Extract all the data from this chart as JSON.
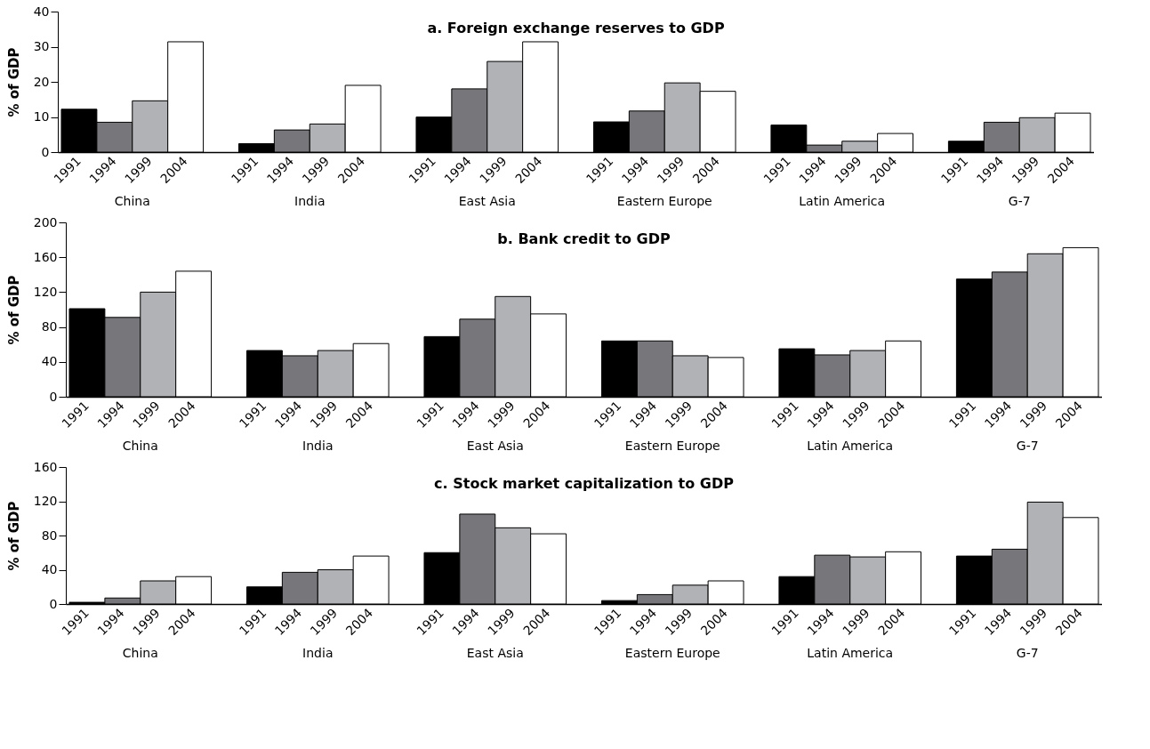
{
  "chart_data": [
    {
      "type": "bar",
      "title": "a. Foreign exchange reserves to GDP",
      "ylabel": "% of GDP",
      "categories": [
        "China",
        "India",
        "East Asia",
        "Eastern Europe",
        "Latin America",
        "G-7"
      ],
      "ylim": [
        0,
        40
      ],
      "yticks": [
        0,
        10,
        20,
        30,
        40
      ],
      "series": [
        {
          "name": "1991",
          "color": "#000000",
          "values": [
            12.2,
            2.4,
            10.0,
            8.6,
            7.7,
            3.1
          ]
        },
        {
          "name": "1994",
          "color": "#77777b",
          "values": [
            8.5,
            6.3,
            18.0,
            11.7,
            2.0,
            8.5
          ]
        },
        {
          "name": "1999",
          "color": "#b1b2b6",
          "values": [
            14.6,
            8.0,
            25.8,
            19.7,
            3.1,
            9.8
          ]
        },
        {
          "name": "2004",
          "color": "#ffffff",
          "values": [
            31.4,
            19.0,
            31.4,
            17.3,
            5.3,
            11.1
          ]
        }
      ]
    },
    {
      "type": "bar",
      "title": "b. Bank credit to GDP",
      "ylabel": "% of GDP",
      "categories": [
        "China",
        "India",
        "East Asia",
        "Eastern Europe",
        "Latin America",
        "G-7"
      ],
      "ylim": [
        0,
        200
      ],
      "yticks": [
        0,
        40,
        80,
        120,
        160,
        200
      ],
      "series": [
        {
          "name": "1991",
          "color": "#000000",
          "values": [
            101,
            53,
            69,
            64,
            55,
            135
          ]
        },
        {
          "name": "1994",
          "color": "#77777b",
          "values": [
            91,
            47,
            89,
            64,
            48,
            143
          ]
        },
        {
          "name": "1999",
          "color": "#b1b2b6",
          "values": [
            120,
            53,
            115,
            47,
            53,
            164
          ]
        },
        {
          "name": "2004",
          "color": "#ffffff",
          "values": [
            144,
            61,
            95,
            45,
            64,
            171
          ]
        }
      ]
    },
    {
      "type": "bar",
      "title": "c. Stock market capitalization to GDP",
      "ylabel": "% of GDP",
      "categories": [
        "China",
        "India",
        "East Asia",
        "Eastern Europe",
        "Latin America",
        "G-7"
      ],
      "ylim": [
        0,
        160
      ],
      "yticks": [
        0,
        40,
        80,
        120,
        160
      ],
      "series": [
        {
          "name": "1991",
          "color": "#000000",
          "values": [
            2,
            20,
            60,
            4,
            32,
            56
          ]
        },
        {
          "name": "1994",
          "color": "#77777b",
          "values": [
            7,
            37,
            105,
            11,
            57,
            64
          ]
        },
        {
          "name": "1999",
          "color": "#b1b2b6",
          "values": [
            27,
            40,
            89,
            22,
            55,
            119
          ]
        },
        {
          "name": "2004",
          "color": "#ffffff",
          "values": [
            32,
            56,
            82,
            27,
            61,
            101
          ]
        }
      ]
    }
  ]
}
